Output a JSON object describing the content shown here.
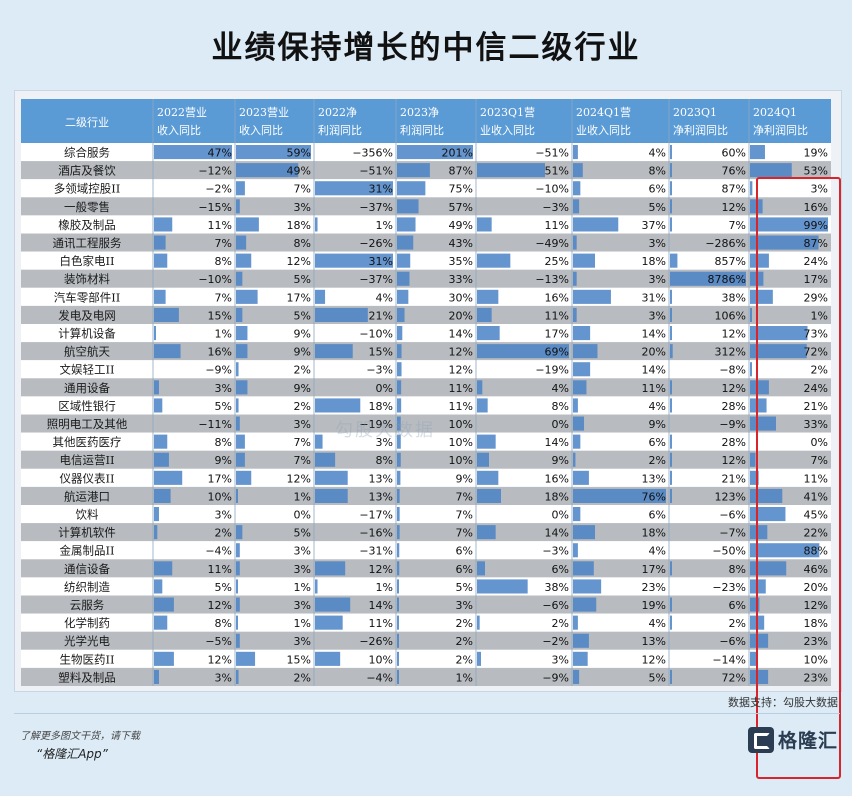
{
  "title": "业绩保持增长的中信二级行业",
  "source_note": "数据支持：勾股大数据",
  "footer": {
    "note": "了解更多图文干货，请下载",
    "app": "“格隆汇App”",
    "logo_text": "格隆汇"
  },
  "watermark": "勾股大数据",
  "colors": {
    "header": "#5b9bd5",
    "bar": "#4a82c6",
    "highlight": "#d8242a",
    "row_even": "#ffffff",
    "row_odd": "#b8bcc0"
  },
  "chart_data": {
    "type": "table",
    "columns": [
      "二级行业",
      "2022营业收入同比",
      "2023营业收入同比",
      "2022净利润同比",
      "2023净利润同比",
      "2023Q1营业收入同比",
      "2024Q1营业收入同比",
      "2023Q1净利润同比",
      "2024Q1净利润同比"
    ],
    "rows": [
      {
        "name": "综合服务",
        "values": [
          47,
          59,
          -356,
          201,
          -51,
          4,
          60,
          19
        ]
      },
      {
        "name": "酒店及餐饮",
        "values": [
          -12,
          49,
          -51,
          87,
          51,
          8,
          76,
          53
        ]
      },
      {
        "name": "多领域控股II",
        "values": [
          -2,
          7,
          31,
          75,
          -10,
          6,
          87,
          3
        ]
      },
      {
        "name": "一般零售",
        "values": [
          -15,
          3,
          -37,
          57,
          -3,
          5,
          12,
          16
        ]
      },
      {
        "name": "橡胶及制品",
        "values": [
          11,
          18,
          1,
          49,
          11,
          37,
          7,
          99
        ]
      },
      {
        "name": "通讯工程服务",
        "values": [
          7,
          8,
          -26,
          43,
          -49,
          3,
          -286,
          87
        ]
      },
      {
        "name": "白色家电II",
        "values": [
          8,
          12,
          31,
          35,
          25,
          18,
          857,
          24
        ]
      },
      {
        "name": "装饰材料",
        "values": [
          -10,
          5,
          -37,
          33,
          -13,
          3,
          8786,
          17
        ]
      },
      {
        "name": "汽车零部件II",
        "values": [
          7,
          17,
          4,
          30,
          16,
          31,
          38,
          29
        ]
      },
      {
        "name": "发电及电网",
        "values": [
          15,
          5,
          21,
          20,
          11,
          3,
          106,
          1
        ]
      },
      {
        "name": "计算机设备",
        "values": [
          1,
          9,
          -10,
          14,
          17,
          14,
          12,
          73
        ]
      },
      {
        "name": "航空航天",
        "values": [
          16,
          9,
          15,
          12,
          69,
          20,
          312,
          72
        ]
      },
      {
        "name": "文娱轻工II",
        "values": [
          -9,
          2,
          -3,
          12,
          -19,
          14,
          -8,
          2
        ]
      },
      {
        "name": "通用设备",
        "values": [
          3,
          9,
          0,
          11,
          4,
          11,
          12,
          24
        ]
      },
      {
        "name": "区域性银行",
        "values": [
          5,
          2,
          18,
          11,
          8,
          4,
          28,
          21
        ]
      },
      {
        "name": "照明电工及其他",
        "values": [
          -11,
          3,
          -19,
          10,
          0,
          9,
          -9,
          33
        ]
      },
      {
        "name": "其他医药医疗",
        "values": [
          8,
          7,
          3,
          10,
          14,
          6,
          28,
          0
        ]
      },
      {
        "name": "电信运营II",
        "values": [
          9,
          7,
          8,
          10,
          9,
          2,
          12,
          7
        ]
      },
      {
        "name": "仪器仪表II",
        "values": [
          17,
          12,
          13,
          9,
          16,
          13,
          21,
          11
        ]
      },
      {
        "name": "航运港口",
        "values": [
          10,
          1,
          13,
          7,
          18,
          76,
          123,
          41
        ]
      },
      {
        "name": "饮料",
        "values": [
          3,
          0,
          -17,
          7,
          0,
          6,
          -6,
          45
        ]
      },
      {
        "name": "计算机软件",
        "values": [
          2,
          5,
          -16,
          7,
          14,
          18,
          -7,
          22
        ]
      },
      {
        "name": "金属制品II",
        "values": [
          -4,
          3,
          -31,
          6,
          -3,
          4,
          -50,
          88
        ]
      },
      {
        "name": "通信设备",
        "values": [
          11,
          3,
          12,
          6,
          6,
          17,
          8,
          46
        ]
      },
      {
        "name": "纺织制造",
        "values": [
          5,
          1,
          1,
          5,
          38,
          23,
          -23,
          20
        ]
      },
      {
        "name": "云服务",
        "values": [
          12,
          3,
          14,
          3,
          -6,
          19,
          6,
          12
        ]
      },
      {
        "name": "化学制药",
        "values": [
          8,
          1,
          11,
          2,
          2,
          4,
          2,
          18
        ]
      },
      {
        "name": "光学光电",
        "values": [
          -5,
          3,
          -26,
          2,
          -2,
          13,
          -6,
          23
        ]
      },
      {
        "name": "生物医药II",
        "values": [
          12,
          15,
          10,
          2,
          3,
          12,
          -14,
          10
        ]
      },
      {
        "name": "塑料及制品",
        "values": [
          3,
          2,
          -4,
          1,
          -9,
          5,
          72,
          23
        ]
      }
    ]
  }
}
